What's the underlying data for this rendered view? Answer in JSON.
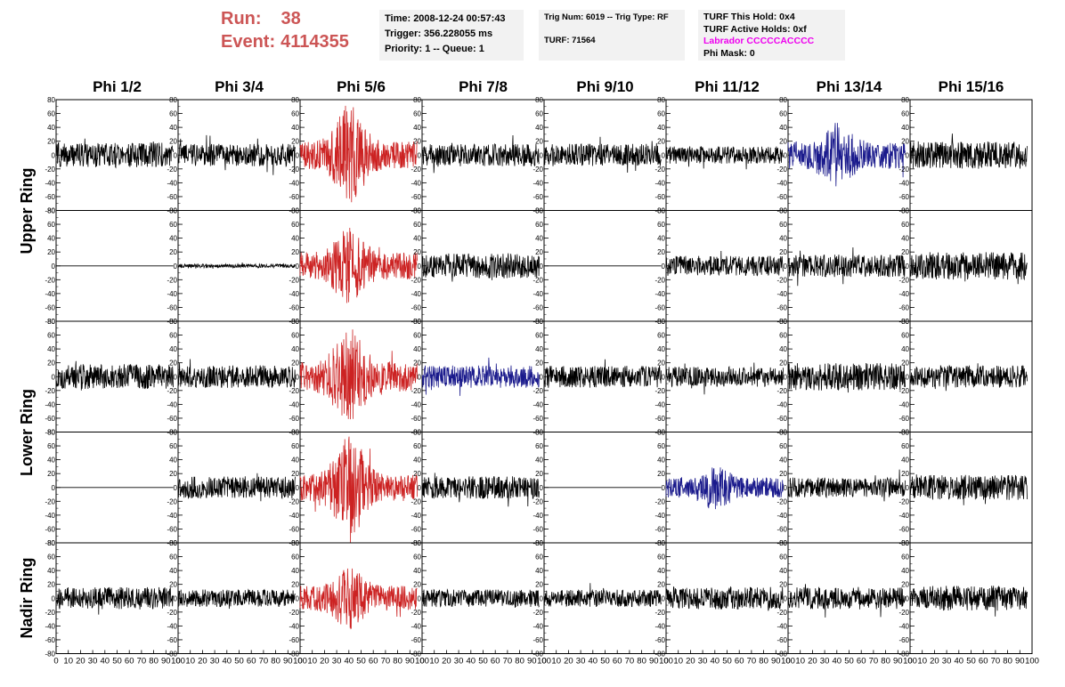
{
  "header": {
    "run_label": "Run:",
    "run_value": "38",
    "event_label": "Event:",
    "event_value": "4114355",
    "time": "Time: 2008-12-24 00:57:43",
    "trigger": "Trigger: 356.228055 ms",
    "priority": "Priority: 1 -- Queue: 1",
    "trig_num": "Trig Num: 6019 -- Trig Type: RF",
    "turf": "TURF: 71564",
    "turf_this_hold": "TURF This Hold: 0x4",
    "turf_active_holds": "TURF Active Holds: 0xf",
    "labrador": "Labrador CCCCCACCCC",
    "phi_mask": "Phi Mask: 0"
  },
  "colors": {
    "run_text": "#cc5555",
    "labrador_text": "#ee00ee",
    "trace_default": "#000000",
    "trace_red": "#cc2222",
    "trace_blue": "#1a1a8c",
    "info_bg": "#f2f2f2"
  },
  "chart_data": {
    "type": "line",
    "columns": [
      "Phi 1/2",
      "Phi 3/4",
      "Phi 5/6",
      "Phi 7/8",
      "Phi 9/10",
      "Phi 11/12",
      "Phi 13/14",
      "Phi 15/16"
    ],
    "row_groups": [
      {
        "label": "Upper Ring",
        "rows": [
          0,
          1
        ]
      },
      {
        "label": "Lower Ring",
        "rows": [
          2,
          3
        ]
      },
      {
        "label": "Nadir Ring",
        "rows": [
          4
        ]
      }
    ],
    "xlim": [
      0,
      100
    ],
    "ylim": [
      -80,
      80
    ],
    "y_ticks": [
      "80",
      "60",
      "40",
      "20",
      "0",
      "-20",
      "-40",
      "-60",
      "-80"
    ],
    "x_ticks": [
      "0",
      "10",
      "20",
      "30",
      "40",
      "50",
      "60",
      "70",
      "80",
      "90",
      "100"
    ],
    "trace_x_range": [
      0,
      96
    ],
    "grid": false,
    "panels": [
      [
        {
          "color": "black",
          "amplitude": 20,
          "burst": 0
        },
        {
          "color": "black",
          "amplitude": 18,
          "burst": 0
        },
        {
          "color": "red",
          "amplitude": 22,
          "burst": 60
        },
        {
          "color": "black",
          "amplitude": 18,
          "burst": 0
        },
        {
          "color": "black",
          "amplitude": 18,
          "burst": 0
        },
        {
          "color": "black",
          "amplitude": 14,
          "burst": 0
        },
        {
          "color": "blue",
          "amplitude": 22,
          "burst": 30
        },
        {
          "color": "black",
          "amplitude": 22,
          "burst": 0
        }
      ],
      [
        {
          "color": "black",
          "amplitude": 0,
          "burst": 0
        },
        {
          "color": "black",
          "amplitude": 3,
          "burst": 0
        },
        {
          "color": "red",
          "amplitude": 22,
          "burst": 40
        },
        {
          "color": "black",
          "amplitude": 20,
          "burst": 0
        },
        {
          "color": "black",
          "amplitude": 0,
          "burst": 0
        },
        {
          "color": "black",
          "amplitude": 16,
          "burst": 0
        },
        {
          "color": "black",
          "amplitude": 18,
          "burst": 0
        },
        {
          "color": "black",
          "amplitude": 22,
          "burst": 0
        }
      ],
      [
        {
          "color": "black",
          "amplitude": 20,
          "burst": 0
        },
        {
          "color": "black",
          "amplitude": 18,
          "burst": 0
        },
        {
          "color": "red",
          "amplitude": 24,
          "burst": 55
        },
        {
          "color": "blue",
          "amplitude": 18,
          "burst": 0
        },
        {
          "color": "black",
          "amplitude": 18,
          "burst": 0
        },
        {
          "color": "black",
          "amplitude": 16,
          "burst": 0
        },
        {
          "color": "black",
          "amplitude": 22,
          "burst": 0
        },
        {
          "color": "black",
          "amplitude": 18,
          "burst": 0
        }
      ],
      [
        {
          "color": "black",
          "amplitude": 0,
          "burst": 0
        },
        {
          "color": "black",
          "amplitude": 18,
          "burst": 0
        },
        {
          "color": "red",
          "amplitude": 22,
          "burst": 60
        },
        {
          "color": "black",
          "amplitude": 18,
          "burst": 0
        },
        {
          "color": "black",
          "amplitude": 0,
          "burst": 0
        },
        {
          "color": "blue",
          "amplitude": 16,
          "burst": 20
        },
        {
          "color": "black",
          "amplitude": 16,
          "burst": 0
        },
        {
          "color": "black",
          "amplitude": 20,
          "burst": 0
        }
      ],
      [
        {
          "color": "black",
          "amplitude": 18,
          "burst": 0
        },
        {
          "color": "black",
          "amplitude": 14,
          "burst": 0
        },
        {
          "color": "red",
          "amplitude": 20,
          "burst": 30
        },
        {
          "color": "black",
          "amplitude": 14,
          "burst": 0
        },
        {
          "color": "black",
          "amplitude": 14,
          "burst": 0
        },
        {
          "color": "black",
          "amplitude": 18,
          "burst": 0
        },
        {
          "color": "black",
          "amplitude": 18,
          "burst": 0
        },
        {
          "color": "black",
          "amplitude": 20,
          "burst": 0
        }
      ]
    ]
  }
}
